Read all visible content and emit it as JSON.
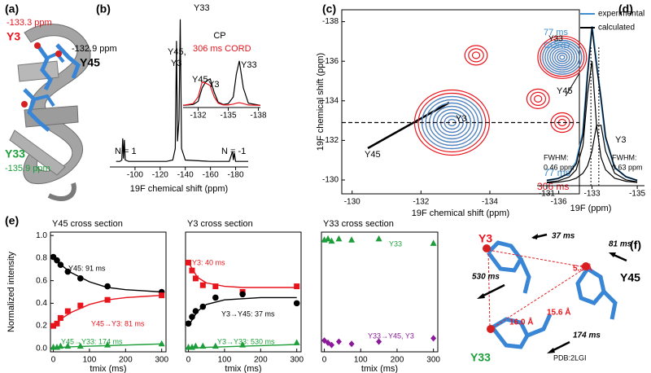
{
  "figure": {
    "panels": [
      "(a)",
      "(b)",
      "(c)",
      "(d)",
      "(e)",
      "(f)"
    ],
    "a": [
      "-133.3 ppm",
      "Y3",
      "-132.9 ppm",
      "Y45",
      "Y33",
      "-135.9 ppm"
    ],
    "f": [
      "Y3",
      "37 ms",
      "81 ms",
      "Y45",
      "5.3 Å",
      "530 ms",
      "15.6 Å",
      "16.0 Å",
      "174 ms",
      "Y33",
      "PDB:2LGI"
    ]
  },
  "chart_data": [
    {
      "type": "line",
      "x": [
        -85,
        -88,
        -89.5,
        -90.2,
        -90.8,
        -91.5,
        -92.2,
        -95,
        -110,
        -125,
        -130,
        -132,
        -133,
        -133.8,
        -135,
        -136,
        -137,
        -140,
        -160,
        -175,
        -177.5,
        -178.2,
        -179,
        -180,
        -190
      ],
      "series": [
        {
          "color": "#000000",
          "values": [
            0.01,
            0.01,
            0.02,
            0.17,
            0.03,
            0.16,
            0.02,
            0.01,
            0.01,
            0.01,
            0.02,
            0.1,
            0.85,
            0.15,
            0.3,
            1.0,
            0.1,
            0.02,
            0.01,
            0.01,
            0.08,
            0.02,
            0.07,
            0.01,
            0.01
          ]
        }
      ],
      "xlim": [
        -80,
        -190
      ],
      "ylim": [
        0,
        1.05
      ],
      "xticks": [
        -100,
        -120,
        -140,
        -160,
        -180
      ],
      "xlabel": "19F chemical shift  (ppm)",
      "annotations": [
        "N = 1",
        "Y45,",
        "Y3",
        "Y33",
        "N = -1"
      ]
    },
    {
      "type": "line",
      "x": [
        -130.5,
        -131.5,
        -132,
        -132.4,
        -132.8,
        -133.2,
        -133.6,
        -134,
        -134.5,
        -135,
        -135.5,
        -135.8,
        -136.1,
        -136.5,
        -137,
        -138.2
      ],
      "series": [
        {
          "name": "CP",
          "color": "#000000",
          "values": [
            0.01,
            0.03,
            0.1,
            0.4,
            0.55,
            0.6,
            0.3,
            0.08,
            0.03,
            0.05,
            0.2,
            0.7,
            1.0,
            0.4,
            0.06,
            0.01
          ]
        },
        {
          "name": "306 ms CORD",
          "color": "#e8141c",
          "values": [
            0.01,
            0.05,
            0.2,
            0.53,
            0.5,
            0.45,
            0.2,
            0.06,
            0.02,
            0.02,
            0.04,
            0.06,
            0.07,
            0.05,
            0.02,
            0.01
          ]
        }
      ],
      "xlim": [
        -130.5,
        -138.2
      ],
      "ylim": [
        0,
        1.05
      ],
      "xticks": [
        -132,
        -135,
        -138
      ],
      "annotations": [
        "Y45",
        "Y3",
        "Y33"
      ]
    },
    {
      "type": "contour",
      "series": [
        {
          "name": "77 ms",
          "color": "#3f8fd0",
          "x": [
            -132.9,
            -136.1
          ],
          "values": [
            -132.9,
            -136.2
          ]
        },
        {
          "name": "306 ms",
          "color": "#e8141c",
          "x": [
            -132.9,
            -136.1,
            -133.6,
            -136.1,
            -135.4
          ],
          "values": [
            -132.9,
            -136.2,
            -136.3,
            -132.9,
            -134.1
          ]
        }
      ],
      "xlim": [
        -129.7,
        -136.6
      ],
      "ylim": [
        -129.3,
        -138.6
      ],
      "xticks": [
        -130,
        -132,
        -134,
        -136
      ],
      "yticks": [
        -130,
        -132,
        -134,
        -136,
        -138
      ],
      "hline": -132.9,
      "xlabel": "19F chemical shift (ppm)",
      "ylabel": "19F chemical shift (ppm)",
      "annotations": [
        "Y33",
        "Y3",
        "Y45"
      ]
    },
    {
      "type": "line",
      "x": [
        -131,
        -131.5,
        -132,
        -132.3,
        -132.6,
        -132.8,
        -133.0,
        -133.2,
        -133.4,
        -133.6,
        -134,
        -134.5,
        -135
      ],
      "series": [
        {
          "name": "experimental",
          "color": "#3f8fd0",
          "values": [
            0.02,
            0.03,
            0.06,
            0.12,
            0.28,
            0.6,
            0.86,
            0.66,
            0.46,
            0.25,
            0.09,
            0.04,
            0.02
          ]
        },
        {
          "name": "calculated",
          "color": "#000000",
          "values": [
            0.02,
            0.03,
            0.06,
            0.11,
            0.27,
            0.59,
            0.85,
            0.64,
            0.47,
            0.26,
            0.09,
            0.04,
            0.02
          ]
        },
        {
          "color": "#000000",
          "values": [
            0.01,
            0.017,
            0.039,
            0.078,
            0.21,
            0.49,
            0.67,
            0.32,
            0.145,
            0.078,
            0.032,
            0.015,
            0.009
          ]
        },
        {
          "color": "#000000",
          "values": [
            0.0065,
            0.01,
            0.019,
            0.032,
            0.059,
            0.099,
            0.18,
            0.32,
            0.32,
            0.18,
            0.059,
            0.023,
            0.012
          ]
        }
      ],
      "xlim": [
        -130.57,
        -135.32
      ],
      "ylim": [
        0,
        0.95
      ],
      "xticks": [
        -131,
        -133,
        -135
      ],
      "vlines": [
        -132.95,
        -133.3
      ],
      "xlabel": "19F (ppm)",
      "annotations": [
        "77 ms",
        "CORD",
        "Y45",
        "Y3",
        "FWHM:",
        "0.46 ppm",
        "FWHM:",
        "0.63 ppm"
      ]
    },
    {
      "type": "scatter",
      "title": "Y45 cross section",
      "fit_x": [
        0,
        25,
        50,
        100,
        150,
        200,
        250,
        300
      ],
      "series": [
        {
          "name": "Y45:  91 ms",
          "color": "#000000",
          "marker": "circle",
          "x": [
            0,
            10,
            20,
            40,
            75,
            150,
            300
          ],
          "values": [
            0.81,
            0.78,
            0.74,
            0.68,
            0.62,
            0.55,
            0.5
          ],
          "fit": [
            0.81,
            0.73,
            0.67,
            0.59,
            0.54,
            0.52,
            0.51,
            0.5
          ]
        },
        {
          "name": "Y45→Y3:  81 ms",
          "color": "#e8141c",
          "marker": "square",
          "x": [
            0,
            10,
            20,
            40,
            75,
            150,
            300
          ],
          "values": [
            0.2,
            0.22,
            0.27,
            0.33,
            0.38,
            0.43,
            0.47
          ],
          "fit": [
            0.19,
            0.27,
            0.32,
            0.39,
            0.43,
            0.45,
            0.46,
            0.47
          ]
        },
        {
          "name": "Y45→Y33:  174 ms",
          "color": "#1e9e3a",
          "marker": "triangle",
          "x": [
            0,
            10,
            20,
            40,
            75,
            150,
            300
          ],
          "values": [
            0.01,
            0.01,
            0.02,
            0.02,
            0.02,
            0.03,
            0.04
          ],
          "fit": [
            0,
            0.01,
            0.015,
            0.02,
            0.025,
            0.03,
            0.035,
            0.04
          ]
        }
      ],
      "xlim": [
        -8,
        312
      ],
      "ylim": [
        -0.03,
        1.03
      ],
      "xticks": [
        0,
        100,
        200,
        300
      ],
      "yticks": [
        {
          "value": 0,
          "label": "0.0"
        },
        0.2,
        0.4,
        0.6,
        0.8,
        {
          "value": 1,
          "label": "1.0"
        }
      ],
      "xlabel": "tmix (ms)",
      "ylabel": "Normalized intensity"
    },
    {
      "type": "scatter",
      "title": "Y3 cross section",
      "fit_x": [
        0,
        25,
        50,
        100,
        150,
        200,
        250,
        300
      ],
      "series": [
        {
          "name": "Y3:  40 ms",
          "color": "#e8141c",
          "marker": "square",
          "x": [
            0,
            10,
            20,
            40,
            75,
            150,
            300
          ],
          "values": [
            0.76,
            0.69,
            0.62,
            0.56,
            0.55,
            0.5,
            0.55
          ],
          "fit": [
            0.76,
            0.63,
            0.58,
            0.55,
            0.54,
            0.54,
            0.54,
            0.54
          ]
        },
        {
          "name": "Y3→Y45: 37 ms",
          "color": "#000000",
          "marker": "circle",
          "x": [
            0,
            10,
            20,
            40,
            75,
            150,
            300
          ],
          "values": [
            0.22,
            0.28,
            0.33,
            0.37,
            0.45,
            0.48,
            0.4
          ],
          "fit": [
            0.2,
            0.33,
            0.39,
            0.43,
            0.44,
            0.45,
            0.45,
            0.45
          ]
        },
        {
          "name": "Y3→Y33:  530 ms",
          "color": "#1e9e3a",
          "marker": "triangle",
          "x": [
            0,
            10,
            20,
            40,
            75,
            150,
            300
          ],
          "values": [
            0.01,
            0.01,
            0.02,
            0.02,
            0.02,
            0.03,
            0.05
          ],
          "fit": [
            0,
            0.005,
            0.01,
            0.015,
            0.02,
            0.025,
            0.03,
            0.035
          ]
        }
      ],
      "xlim": [
        -8,
        312
      ],
      "ylim": [
        -0.03,
        1.03
      ],
      "xticks": [
        0,
        100,
        200,
        300
      ],
      "xlabel": "tmix (ms)"
    },
    {
      "type": "scatter",
      "title": "Y33 cross section",
      "series": [
        {
          "name": "Y33",
          "color": "#1e9e3a",
          "marker": "triangle",
          "x": [
            0,
            10,
            20,
            40,
            75,
            150,
            300
          ],
          "values": [
            0.96,
            0.97,
            0.95,
            0.97,
            0.96,
            0.97,
            0.93
          ]
        },
        {
          "name": "Y33→Y45, Y3",
          "color": "#8b1a9b",
          "marker": "diamond",
          "x": [
            0,
            10,
            20,
            40,
            75,
            150,
            300
          ],
          "values": [
            0.07,
            0.05,
            0.03,
            0.06,
            0.04,
            0.06,
            0.09
          ]
        }
      ],
      "xlim": [
        -8,
        312
      ],
      "ylim": [
        -0.03,
        1.03
      ],
      "xticks": [
        0,
        100,
        200,
        300
      ],
      "xlabel": "tmix (ms)"
    }
  ]
}
